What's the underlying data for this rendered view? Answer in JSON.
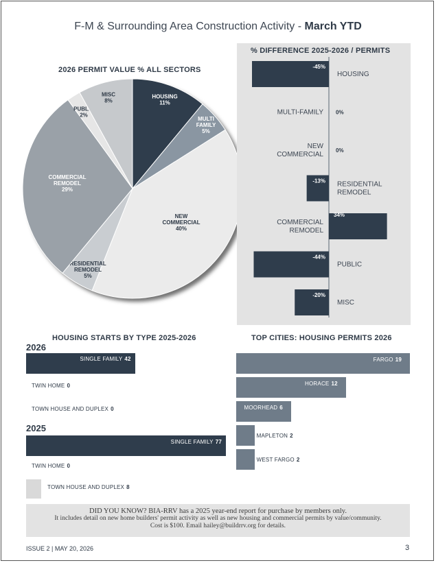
{
  "header": {
    "title_plain": "F-M & Surrounding Area Construction Activity - ",
    "title_bold": "March YTD"
  },
  "chart_data": [
    {
      "type": "pie",
      "title": "2026 PERMIT VALUE % ALL SECTORS",
      "slices": [
        {
          "name": "HOUSING",
          "value": 11,
          "label": "11%",
          "color": "#2f3d4c"
        },
        {
          "name": "MULTI FAMILY",
          "value": 5,
          "label": "5%",
          "color": "#8a96a2"
        },
        {
          "name": "NEW COMMERCIAL",
          "value": 40,
          "label": "40%",
          "color": "#ebebeb"
        },
        {
          "name": "RESIDENTIAL REMODEL",
          "value": 5,
          "label": "5%",
          "color": "#c9cdd1"
        },
        {
          "name": "COMMERCIAL REMODEL",
          "value": 29,
          "label": "29%",
          "color": "#9aa1a8"
        },
        {
          "name": "PUBLIC",
          "value": 2,
          "label": "2%",
          "color": "#e6e6e6"
        },
        {
          "name": "MISC",
          "value": 8,
          "label": "8%",
          "color": "#c6c9cc"
        }
      ]
    },
    {
      "type": "bar",
      "title": "% DIFFERENCE 2025-2026 / PERMITS",
      "categories": [
        "HOUSING",
        "MULTI-FAMILY",
        "NEW COMMERCIAL",
        "RESIDENTIAL REMODEL",
        "COMMERCIAL REMODEL",
        "PUBLIC",
        "MISC"
      ],
      "values": [
        -45,
        0,
        0,
        -13,
        34,
        -44,
        -20
      ],
      "value_labels": [
        "-45%",
        "0%",
        "0%",
        "-13%",
        "34%",
        "-44%",
        "-20%"
      ],
      "xlim": [
        -45,
        34
      ],
      "color": "#2f3d4c",
      "background": "#e3e3e3"
    },
    {
      "type": "bar",
      "title": "HOUSING STARTS BY TYPE 2025-2026",
      "groups": [
        {
          "year": "2026",
          "items": [
            {
              "name": "SINGLE FAMILY",
              "value": 42
            },
            {
              "name": "TWIN HOME",
              "value": 0
            },
            {
              "name": "TOWN HOUSE AND DUPLEX",
              "value": 0
            }
          ]
        },
        {
          "year": "2025",
          "items": [
            {
              "name": "SINGLE FAMILY",
              "value": 77
            },
            {
              "name": "TWIN HOME",
              "value": 0
            },
            {
              "name": "TOWN HOUSE AND DUPLEX",
              "value": 8
            }
          ]
        }
      ],
      "xlim": [
        0,
        77
      ]
    },
    {
      "type": "bar",
      "title": "TOP CITIES: HOUSING PERMITS 2026",
      "categories": [
        "FARGO",
        "HORACE",
        "MOORHEAD",
        "MAPLETON",
        "WEST FARGO"
      ],
      "values": [
        19,
        12,
        6,
        2,
        2
      ],
      "xlim": [
        0,
        19
      ],
      "color": "#6f7c89"
    }
  ],
  "did_you_know": {
    "line1": "DID YOU KNOW? BIA-RRV has a 2025 year-end report for purchase by members only.",
    "line2": "It includes detail on new home builders' permit activity as well as new housing and commercial permits by value/community.",
    "line3": "Cost is $100. Email hailey@buildrrv.org for details."
  },
  "footer": {
    "issue": "ISSUE 2 | MAY 20, 2026",
    "page_number": "3"
  }
}
